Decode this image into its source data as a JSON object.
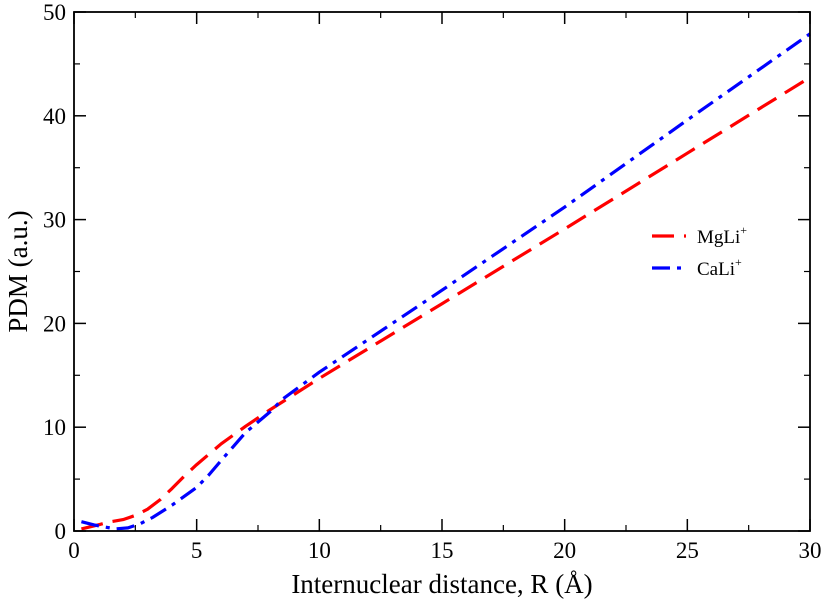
{
  "chart_data": {
    "type": "line",
    "title": "",
    "xlabel": "Internuclear distance, R (Å)",
    "ylabel": "PDM (a.u.)",
    "xlim": [
      0,
      30
    ],
    "ylim": [
      0,
      50
    ],
    "xticks": [
      0,
      5,
      10,
      15,
      20,
      25,
      30
    ],
    "yticks": [
      0,
      10,
      20,
      30,
      40,
      50
    ],
    "grid": false,
    "legend_position": "right",
    "series": [
      {
        "name": "MgLi",
        "name_superscript": "+",
        "color": "#ff0000",
        "dash": "long-dash",
        "x": [
          0.3,
          1.0,
          1.5,
          2.0,
          2.5,
          3.0,
          3.5,
          4.0,
          4.5,
          5.0,
          6.0,
          7.0,
          8.0,
          10.0,
          15.0,
          20.0,
          25.0,
          30.0
        ],
        "y": [
          0.2,
          0.6,
          0.9,
          1.1,
          1.5,
          2.1,
          3.0,
          4.1,
          5.3,
          6.4,
          8.4,
          10.1,
          11.7,
          14.7,
          21.9,
          29.1,
          36.4,
          43.7
        ]
      },
      {
        "name": "CaLi",
        "name_superscript": "+",
        "color": "#0000ff",
        "dash": "dash-dot",
        "x": [
          0.3,
          0.8,
          1.2,
          1.7,
          2.2,
          2.7,
          3.2,
          4.0,
          5.0,
          5.5,
          6.0,
          7.0,
          8.0,
          8.5,
          10.0,
          15.0,
          20.0,
          25.0,
          30.0
        ],
        "y": [
          0.9,
          0.6,
          0.4,
          0.2,
          0.3,
          0.7,
          1.3,
          2.5,
          4.2,
          5.4,
          6.8,
          9.5,
          11.5,
          12.7,
          15.3,
          23.2,
          31.2,
          39.6,
          47.9
        ]
      }
    ]
  }
}
